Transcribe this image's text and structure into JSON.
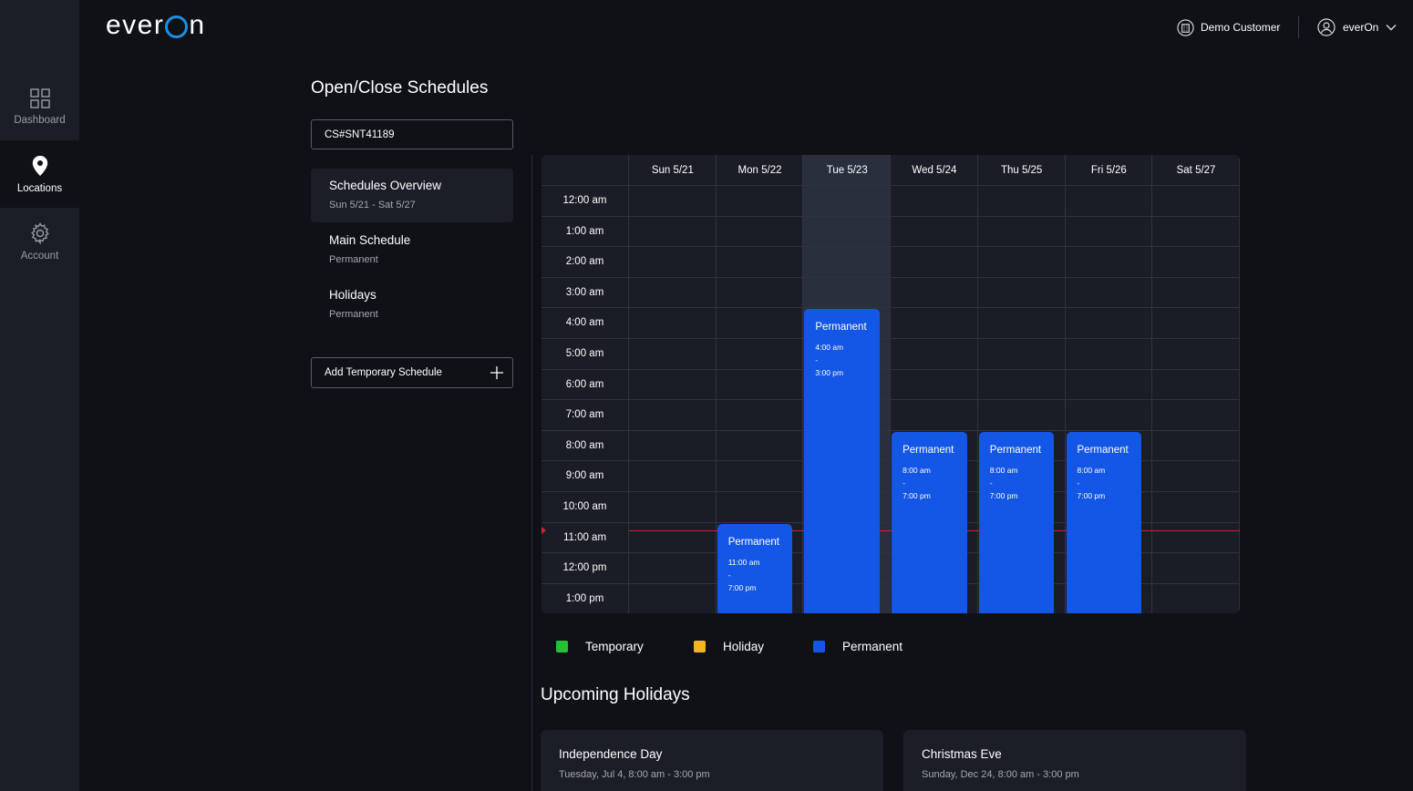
{
  "brand": {
    "logo_left": "ever",
    "logo_right": "n"
  },
  "header": {
    "customer": "Demo Customer",
    "user": "everOn"
  },
  "sidebar": {
    "items": [
      {
        "label": "Dashboard",
        "icon": "grid-icon"
      },
      {
        "label": "Locations",
        "icon": "location-pin-icon",
        "active": true
      },
      {
        "label": "Account",
        "icon": "gear-icon"
      }
    ]
  },
  "page": {
    "title": "Open/Close Schedules",
    "location_value": "CS#SNT41189"
  },
  "schedules": [
    {
      "title": "Schedules Overview",
      "subtitle": "Sun 5/21 - Sat 5/27",
      "active": true
    },
    {
      "title": "Main Schedule",
      "subtitle": "Permanent"
    },
    {
      "title": "Holidays",
      "subtitle": "Permanent"
    }
  ],
  "add_schedule_label": "Add Temporary Schedule",
  "calendar": {
    "days": [
      "Sun 5/21",
      "Mon 5/22",
      "Tue 5/23",
      "Wed 5/24",
      "Thu 5/25",
      "Fri 5/26",
      "Sat 5/27"
    ],
    "today_index": 2,
    "hours": [
      "12:00 am",
      "1:00 am",
      "2:00 am",
      "3:00 am",
      "4:00 am",
      "5:00 am",
      "6:00 am",
      "7:00 am",
      "8:00 am",
      "9:00 am",
      "10:00 am",
      "11:00 am",
      "12:00 pm",
      "1:00 pm"
    ],
    "events": [
      {
        "day": 1,
        "title": "Permanent",
        "start": "11:00 am",
        "sep": "-",
        "end": "7:00 pm"
      },
      {
        "day": 2,
        "title": "Permanent",
        "start": "4:00 am",
        "sep": "-",
        "end": "3:00 pm"
      },
      {
        "day": 3,
        "title": "Permanent",
        "start": "8:00 am",
        "sep": "-",
        "end": "7:00 pm"
      },
      {
        "day": 4,
        "title": "Permanent",
        "start": "8:00 am",
        "sep": "-",
        "end": "7:00 pm"
      },
      {
        "day": 5,
        "title": "Permanent",
        "start": "8:00 am",
        "sep": "-",
        "end": "7:00 pm"
      }
    ]
  },
  "legend": [
    {
      "label": "Temporary",
      "color": "#22c32e"
    },
    {
      "label": "Holiday",
      "color": "#f4b324"
    },
    {
      "label": "Permanent",
      "color": "#1457e6"
    }
  ],
  "upcoming": {
    "title": "Upcoming Holidays",
    "items": [
      {
        "name": "Independence Day",
        "date": "Tuesday, Jul 4, 8:00 am - 3:00 pm"
      },
      {
        "name": "Christmas Eve",
        "date": "Sunday, Dec 24, 8:00 am - 3:00 pm"
      }
    ]
  }
}
